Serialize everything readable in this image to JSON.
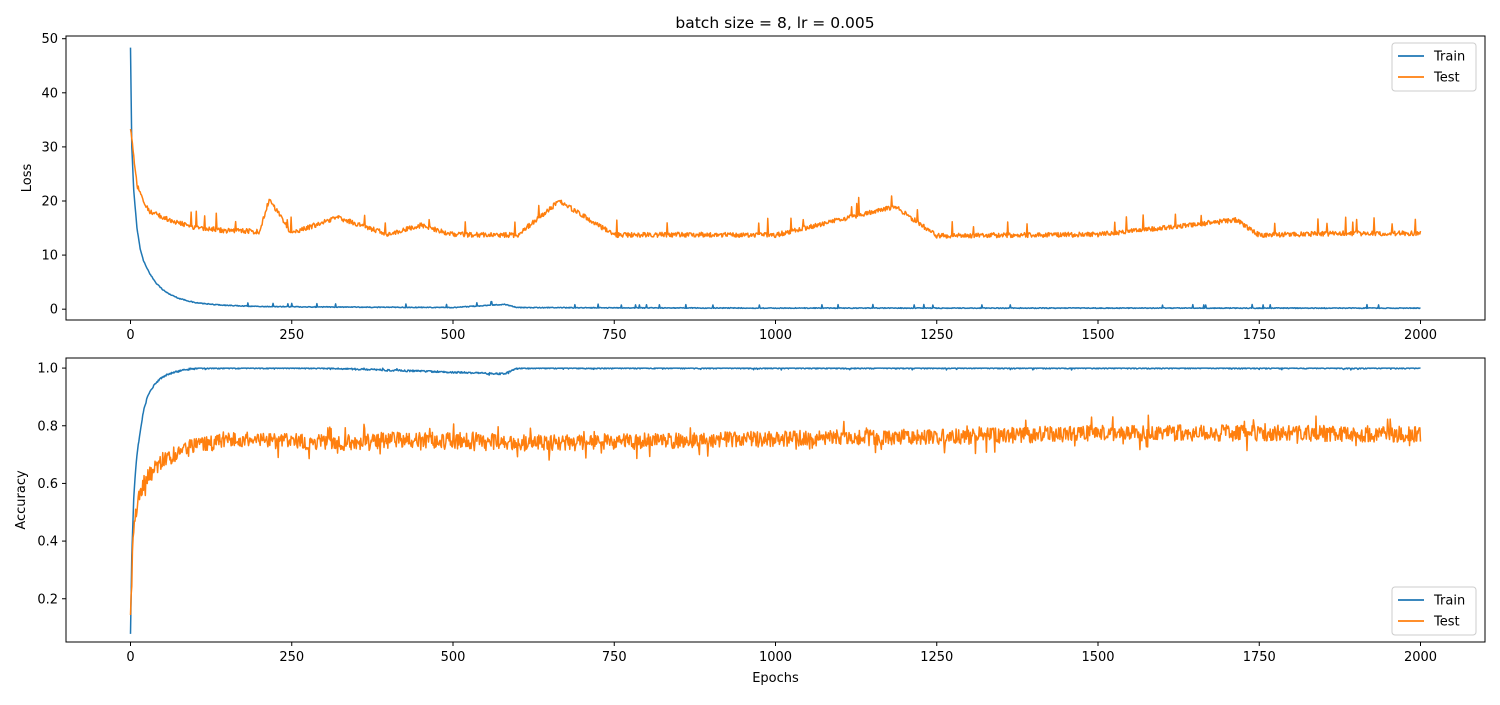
{
  "figure": {
    "title": "batch size = 8, lr = 0.005"
  },
  "colors": {
    "train": "#1f77b4",
    "test": "#ff7f0e"
  },
  "chart_data": [
    {
      "type": "line",
      "ylabel": "Loss",
      "xlabel": "",
      "xlim": [
        -100,
        2100
      ],
      "ylim": [
        -2,
        50.5
      ],
      "xticks": [
        0,
        250,
        500,
        750,
        1000,
        1250,
        1500,
        1750,
        2000
      ],
      "yticks": [
        0,
        10,
        20,
        30,
        40,
        50
      ],
      "legend": {
        "position": "top-right"
      },
      "series": [
        {
          "name": "Train",
          "color": "#1f77b4",
          "x": [
            0,
            2,
            5,
            10,
            15,
            20,
            30,
            40,
            50,
            60,
            75,
            100,
            125,
            150,
            175,
            200,
            250,
            300,
            400,
            500,
            580,
            600,
            750,
            1000,
            1250,
            1500,
            1750,
            2000
          ],
          "y": [
            48.3,
            30.0,
            22.0,
            15.0,
            11.2,
            9.0,
            6.5,
            4.8,
            3.6,
            2.8,
            2.0,
            1.2,
            0.9,
            0.7,
            0.6,
            0.5,
            0.45,
            0.4,
            0.35,
            0.3,
            0.9,
            0.3,
            0.25,
            0.2,
            0.2,
            0.2,
            0.2,
            0.2
          ]
        },
        {
          "name": "Test",
          "color": "#ff7f0e",
          "x": [
            0,
            5,
            10,
            20,
            30,
            40,
            50,
            60,
            75,
            100,
            125,
            150,
            175,
            200,
            215,
            250,
            320,
            400,
            450,
            500,
            600,
            665,
            750,
            900,
            1000,
            1185,
            1250,
            1500,
            1715,
            1750,
            1875,
            2000
          ],
          "y": [
            33.5,
            28.0,
            23.0,
            20.0,
            18.0,
            17.5,
            17.0,
            16.5,
            16.0,
            15.0,
            14.8,
            14.5,
            14.5,
            14.3,
            20.3,
            14.0,
            17.0,
            13.8,
            15.5,
            13.8,
            13.7,
            20.0,
            13.7,
            13.8,
            13.7,
            19.0,
            13.6,
            13.8,
            16.5,
            13.7,
            14.0,
            14.0
          ]
        }
      ]
    },
    {
      "type": "line",
      "ylabel": "Accuracy",
      "xlabel": "Epochs",
      "xlim": [
        -100,
        2100
      ],
      "ylim": [
        0.05,
        1.035
      ],
      "xticks": [
        0,
        250,
        500,
        750,
        1000,
        1250,
        1500,
        1750,
        2000
      ],
      "yticks": [
        0.2,
        0.4,
        0.6,
        0.8,
        1.0
      ],
      "legend": {
        "position": "bottom-right"
      },
      "series": [
        {
          "name": "Train",
          "color": "#1f77b4",
          "x": [
            0,
            2,
            5,
            8,
            10,
            15,
            20,
            25,
            30,
            40,
            50,
            60,
            75,
            100,
            150,
            300,
            580,
            600,
            1000,
            1500,
            2000
          ],
          "y": [
            0.08,
            0.35,
            0.55,
            0.65,
            0.7,
            0.78,
            0.85,
            0.89,
            0.92,
            0.95,
            0.97,
            0.98,
            0.99,
            1.0,
            1.0,
            1.0,
            0.98,
            1.0,
            1.0,
            1.0,
            1.0
          ],
          "noise": 0.003
        },
        {
          "name": "Test",
          "color": "#ff7f0e",
          "x": [
            0,
            3,
            5,
            10,
            15,
            20,
            30,
            40,
            50,
            75,
            100,
            150,
            200,
            320,
            400,
            500,
            665,
            750,
            1000,
            1185,
            1250,
            1500,
            1750,
            2000
          ],
          "y": [
            0.15,
            0.38,
            0.45,
            0.52,
            0.57,
            0.6,
            0.63,
            0.66,
            0.68,
            0.71,
            0.73,
            0.75,
            0.75,
            0.74,
            0.75,
            0.75,
            0.74,
            0.745,
            0.755,
            0.76,
            0.76,
            0.775,
            0.775,
            0.77
          ],
          "noise": 0.028
        }
      ]
    }
  ]
}
